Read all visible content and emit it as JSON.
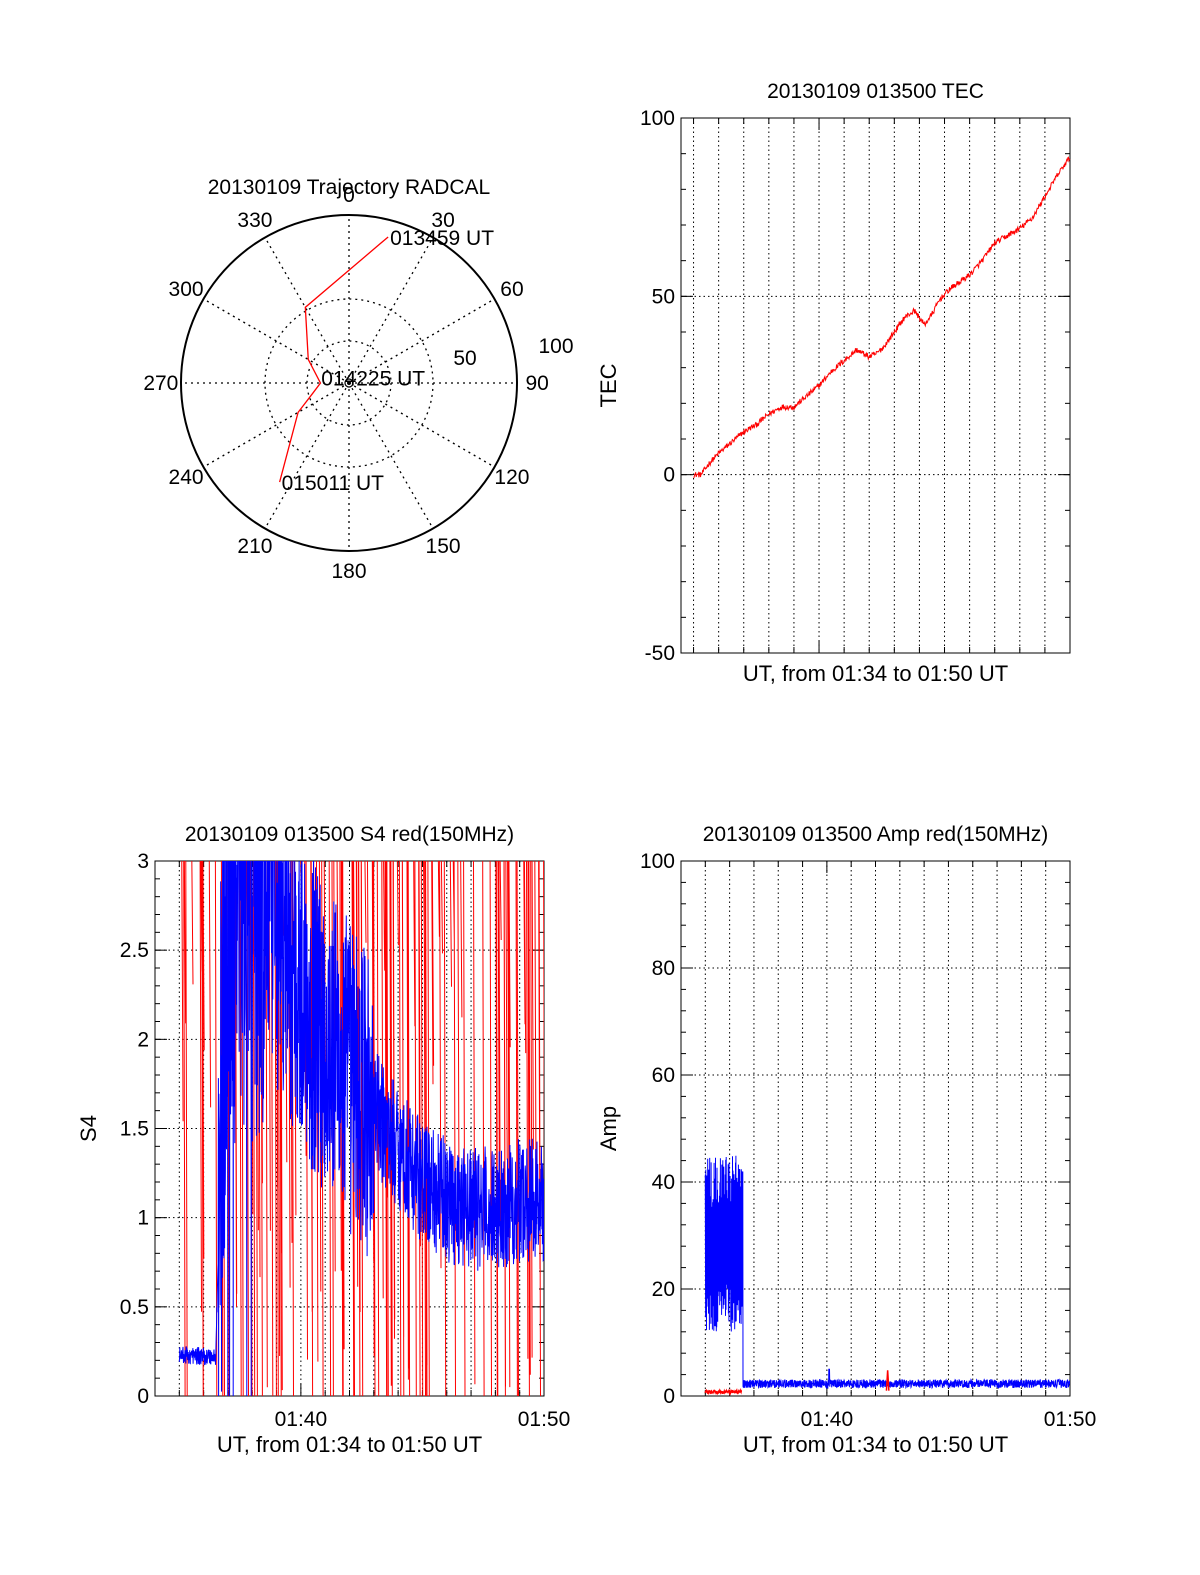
{
  "chart_data": [
    {
      "type": "polar-trajectory",
      "title": "20130109 Trajectory RADCAL",
      "angle_labels": [
        "0",
        "30",
        "60",
        "90",
        "120",
        "150",
        "180",
        "210",
        "240",
        "270",
        "300",
        "330"
      ],
      "radial_labels": [
        "50",
        "100"
      ],
      "trajectory": [
        [
          15,
          90
        ],
        [
          330,
          52
        ],
        [
          300,
          28
        ],
        [
          270,
          17
        ],
        [
          255,
          22
        ],
        [
          240,
          35
        ],
        [
          215,
          72
        ]
      ],
      "annotations": [
        {
          "text": "013459 UT",
          "azimuth": 15,
          "zenith": 90
        },
        {
          "text": "014225 UT",
          "azimuth": 280,
          "zenith": 18
        },
        {
          "text": "015011 UT",
          "azimuth": 215,
          "zenith": 72
        }
      ],
      "colors": {
        "trajectory": "#ff0000"
      }
    },
    {
      "type": "line",
      "title": "20130109 013500 TEC",
      "xlabel": "UT, from 01:34 to 01:50 UT",
      "ylabel": "TEC",
      "xlim": [
        94.5,
        110
      ],
      "ylim": [
        -50,
        100
      ],
      "yticks": [
        "-50",
        "0",
        "50",
        "100"
      ],
      "series": [
        {
          "color": "#ff0000",
          "x": [
            95,
            95.3,
            95.6,
            96,
            96.5,
            97,
            97.5,
            98,
            98.5,
            99,
            99.5,
            100,
            100.5,
            101,
            101.5,
            102,
            102.3,
            102.6,
            103,
            103.4,
            103.8,
            104.2,
            104.5,
            104.8,
            105.2,
            105.6,
            106,
            106.5,
            107,
            107.5,
            108,
            108.5,
            109,
            109.5,
            110
          ],
          "y": [
            0,
            0,
            3,
            6,
            9,
            12,
            14,
            17,
            19,
            19,
            22,
            25,
            29,
            32,
            35,
            33,
            34,
            36,
            40,
            44,
            46,
            42,
            45,
            49,
            52,
            54,
            56,
            60,
            65,
            67,
            69,
            72,
            78,
            84,
            89
          ]
        }
      ]
    },
    {
      "type": "line",
      "title": "20130109 013500 S4 red(150MHz)",
      "xlabel": "UT, from 01:34 to 01:50 UT",
      "ylabel": "S4",
      "xlim": [
        94,
        110
      ],
      "ylim": [
        0,
        3
      ],
      "xticks": [
        "01:40",
        "01:50"
      ],
      "yticks": [
        "0",
        "0.5",
        "1",
        "1.5",
        "2",
        "2.5",
        "3"
      ],
      "series": [
        {
          "color": "#ff0000",
          "x": [
            95,
            110
          ],
          "y": [
            3,
            3
          ]
        },
        {
          "color": "#0000ff",
          "x": [
            95,
            96.5,
            97,
            98,
            99,
            100,
            101,
            102,
            103,
            104,
            105,
            106,
            107,
            108,
            109,
            110
          ],
          "y": [
            0.23,
            0.22,
            3,
            3,
            2.6,
            2.3,
            2.0,
            1.8,
            1.6,
            1.4,
            1.2,
            1.1,
            1.05,
            1.05,
            1.1,
            1.1
          ]
        }
      ]
    },
    {
      "type": "line",
      "title": "20130109 013500 Amp red(150MHz)",
      "xlabel": "UT, from 01:34 to 01:50 UT",
      "ylabel": "Amp",
      "xlim": [
        94,
        110
      ],
      "ylim": [
        0,
        100
      ],
      "xticks": [
        "01:40",
        "01:50"
      ],
      "yticks": [
        "0",
        "20",
        "40",
        "60",
        "80",
        "100"
      ],
      "series": [
        {
          "color": "#0000ff",
          "x": [
            95,
            96.5,
            96.6,
            110
          ],
          "y": [
            30,
            30,
            2,
            2
          ]
        },
        {
          "color": "#ff0000",
          "x": [
            95,
            96.5
          ],
          "y": [
            0.5,
            0.5
          ]
        }
      ]
    }
  ]
}
